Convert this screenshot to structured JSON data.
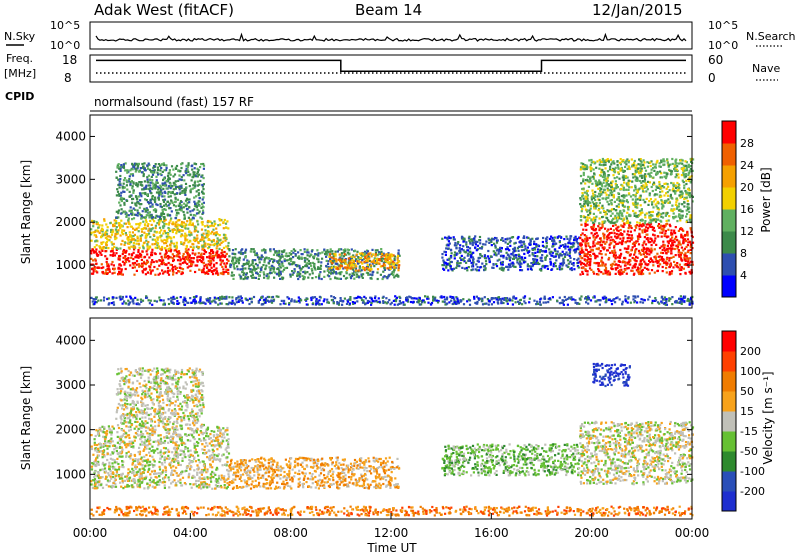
{
  "header": {
    "station": "Adak West (fitACF)",
    "beam": "Beam 14",
    "date": "12/Jan/2015"
  },
  "noise_panel": {
    "left_label": "N.Sky",
    "right_label": "N.Search",
    "left_ticks": [
      "10^5",
      "10^0"
    ],
    "right_ticks": [
      "10^5",
      "10^0"
    ]
  },
  "freq_panel": {
    "left_label_1": "Freq.",
    "left_label_2": "[MHz]",
    "right_label": "Nave",
    "left_ticks": [
      "18",
      "8"
    ],
    "right_ticks": [
      "60",
      "0"
    ],
    "freq_steps": [
      {
        "start_hour": 0,
        "end_hour": 10,
        "mhz": 16
      },
      {
        "start_hour": 10,
        "end_hour": 18,
        "mhz": 12
      },
      {
        "start_hour": 18,
        "end_hour": 24,
        "mhz": 16
      }
    ]
  },
  "cpid": {
    "label": "CPID",
    "text": "normalsound (fast) 157 RF"
  },
  "colors": {
    "power_scale": [
      "#0000ff",
      "#2e4fb0",
      "#3c8a4a",
      "#60b060",
      "#f2d000",
      "#f5a000",
      "#f06000",
      "#ff0000"
    ],
    "velocity_scale": [
      "#1e2fd0",
      "#2a4fb8",
      "#2e8a2e",
      "#66c033",
      "#c0c0b8",
      "#f7a21b",
      "#f07c00",
      "#ff4000",
      "#ff0000"
    ]
  },
  "chart_data": [
    {
      "type": "heatmap",
      "name": "power",
      "ylabel": "Slant Range [km]",
      "yticks": [
        "1000",
        "2000",
        "3000",
        "4000"
      ],
      "ylim": [
        0,
        4500
      ],
      "colorbar_label": "Power [dB]",
      "colorbar_ticks": [
        "4",
        "8",
        "12",
        "16",
        "20",
        "24",
        "28"
      ],
      "echo_regions": [
        {
          "t0": 0.0,
          "t1": 5.5,
          "r_lo": 800,
          "r_hi": 1400,
          "level": 7
        },
        {
          "t0": 0.0,
          "t1": 5.5,
          "r_lo": 1400,
          "r_hi": 2100,
          "level": 4
        },
        {
          "t0": 1.0,
          "t1": 4.5,
          "r_lo": 2100,
          "r_hi": 3400,
          "level": 2
        },
        {
          "t0": 5.5,
          "t1": 12.3,
          "r_lo": 700,
          "r_hi": 1400,
          "level": 2
        },
        {
          "t0": 9.5,
          "t1": 12.3,
          "r_lo": 900,
          "r_hi": 1300,
          "level": 5
        },
        {
          "t0": 14.0,
          "t1": 19.5,
          "r_lo": 900,
          "r_hi": 1700,
          "level": 1
        },
        {
          "t0": 19.5,
          "t1": 24.0,
          "r_lo": 800,
          "r_hi": 2000,
          "level": 7
        },
        {
          "t0": 19.5,
          "t1": 24.0,
          "r_lo": 2000,
          "r_hi": 3500,
          "level": 3
        },
        {
          "t0": 0.0,
          "t1": 24.0,
          "r_lo": 100,
          "r_hi": 300,
          "level": 1
        }
      ]
    },
    {
      "type": "heatmap",
      "name": "velocity",
      "ylabel": "Slant Range [km]",
      "yticks": [
        "1000",
        "2000",
        "3000",
        "4000"
      ],
      "ylim": [
        0,
        4500
      ],
      "xlabel": "Time UT",
      "xticks": [
        "00:00",
        "04:00",
        "08:00",
        "12:00",
        "16:00",
        "20:00",
        "00:00"
      ],
      "xlim": [
        0,
        24
      ],
      "colorbar_label": "Velocity [m s⁻¹]",
      "colorbar_ticks": [
        "200",
        "100",
        "50",
        "15",
        "-15",
        "-50",
        "-100",
        "-200"
      ],
      "echo_regions": [
        {
          "t0": 0.0,
          "t1": 5.5,
          "r_lo": 700,
          "r_hi": 2100,
          "level": 4
        },
        {
          "t0": 1.0,
          "t1": 4.5,
          "r_lo": 2100,
          "r_hi": 3400,
          "level": 4
        },
        {
          "t0": 5.5,
          "t1": 12.3,
          "r_lo": 700,
          "r_hi": 1400,
          "level": 5
        },
        {
          "t0": 14.0,
          "t1": 19.5,
          "r_lo": 1000,
          "r_hi": 1700,
          "level": 3
        },
        {
          "t0": 19.5,
          "t1": 24.0,
          "r_lo": 800,
          "r_hi": 2200,
          "level": 4
        },
        {
          "t0": 20.0,
          "t1": 21.5,
          "r_lo": 3000,
          "r_hi": 3500,
          "level": 0
        },
        {
          "t0": 0.0,
          "t1": 24.0,
          "r_lo": 100,
          "r_hi": 300,
          "level": 6
        }
      ]
    }
  ]
}
